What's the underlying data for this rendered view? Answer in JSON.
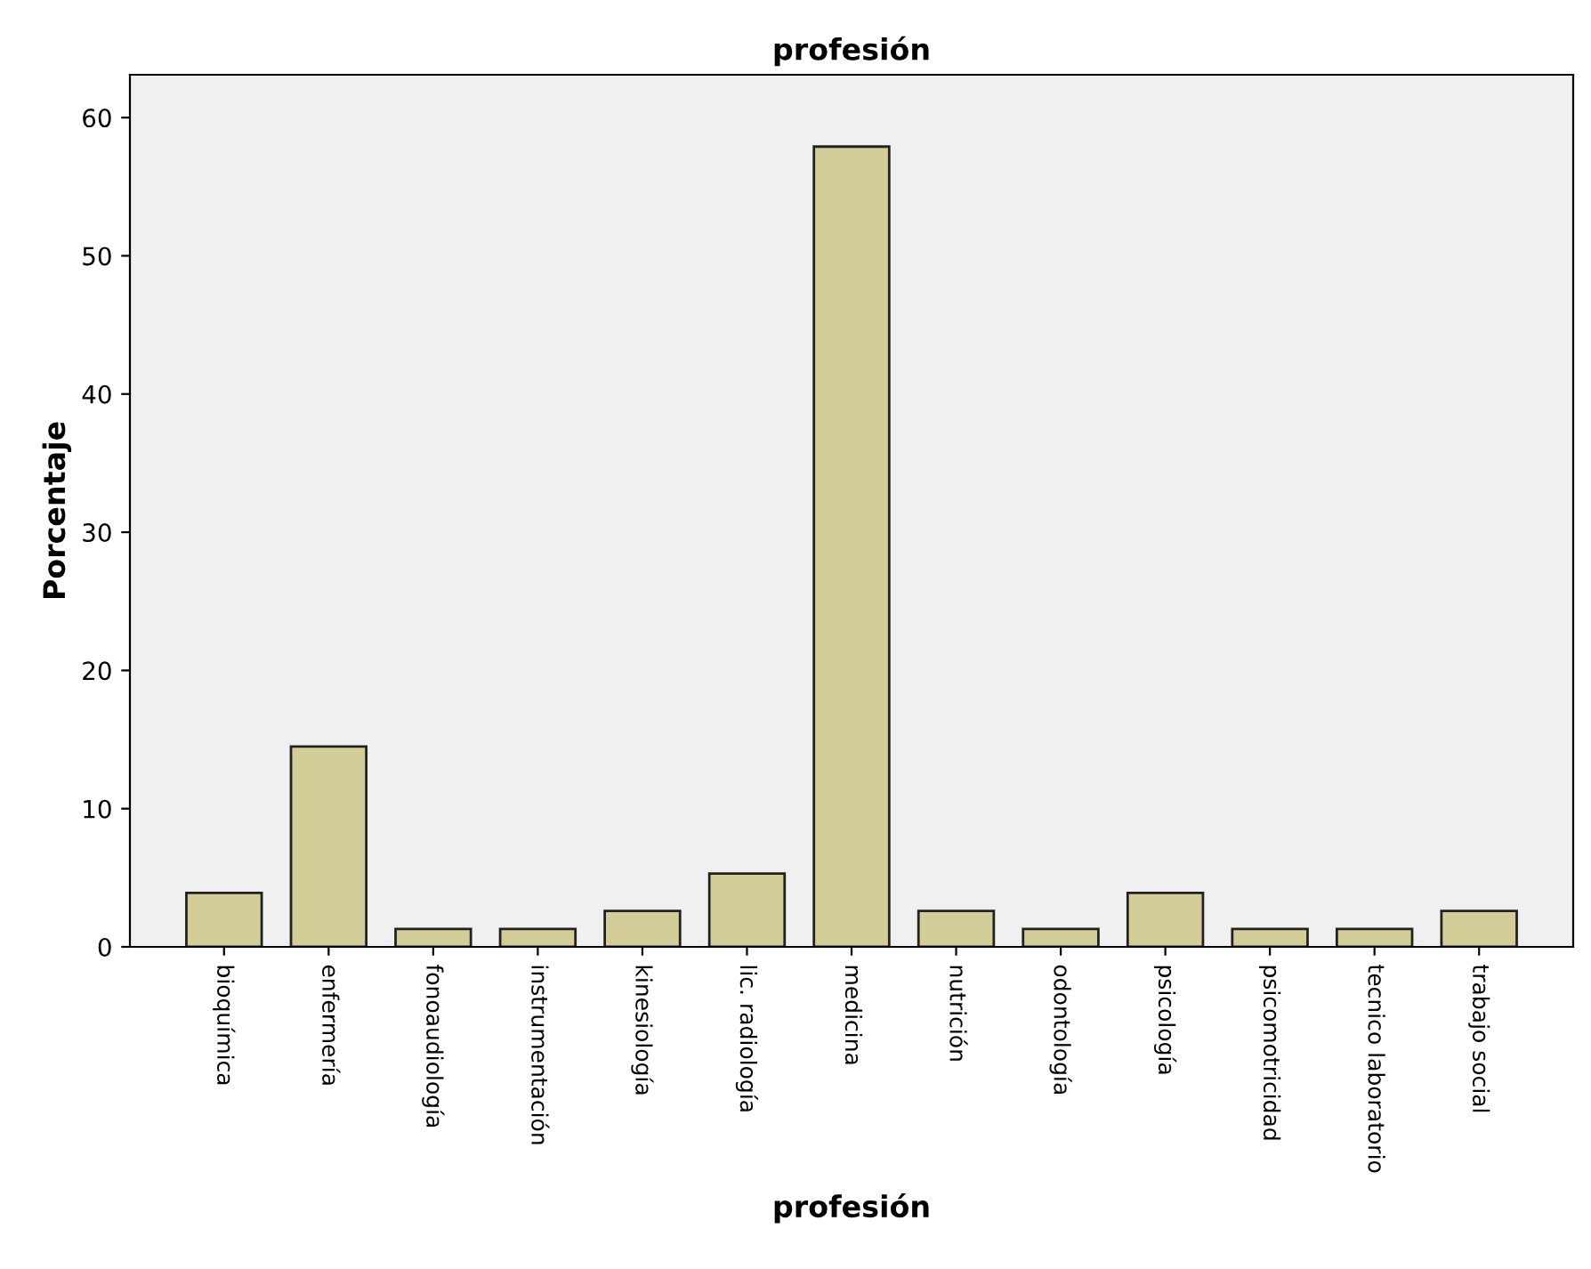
{
  "chart_data": {
    "type": "bar",
    "title": "profesión",
    "xlabel": "profesión",
    "ylabel": "Porcentaje",
    "categories": [
      "bioquímica",
      "enfermería",
      "fonoaudiología",
      "instrumentación",
      "kinesiología",
      "lic. radiología",
      "medicina",
      "nutrición",
      "odontología",
      "psicología",
      "psicomotricidad",
      "tecnico laboratorio",
      "trabajo social"
    ],
    "values": [
      3.9,
      14.5,
      1.3,
      1.3,
      2.6,
      5.3,
      57.9,
      2.6,
      1.3,
      3.9,
      1.3,
      1.3,
      2.6
    ],
    "color": "#d3ce98",
    "ylim": [
      0,
      63.1
    ],
    "yticks": [
      0,
      10,
      20,
      30,
      40,
      50,
      60
    ],
    "grid": false,
    "legend": false
  }
}
